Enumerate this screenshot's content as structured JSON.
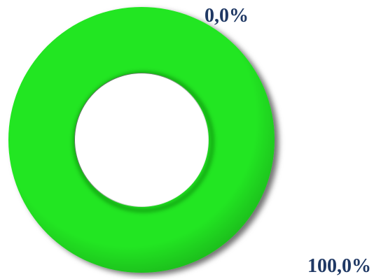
{
  "chart_data": {
    "type": "pie",
    "donut": true,
    "title": "",
    "categories": [
      "",
      ""
    ],
    "values": [
      0.0,
      100.0
    ],
    "data_labels": [
      "0,0%",
      "100,0%"
    ],
    "colors": [
      "#e8543a",
      "#22e622"
    ],
    "label_color": "#1f3864",
    "legend": "none"
  }
}
